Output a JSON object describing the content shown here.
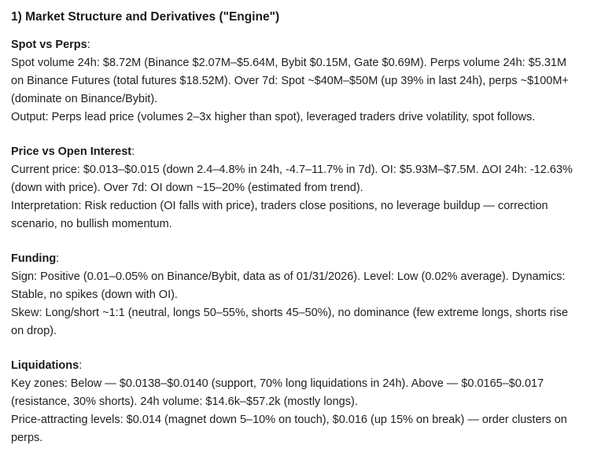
{
  "document": {
    "title": "1) Market Structure and Derivatives (\"Engine\")",
    "label_suffix": ":",
    "sections": [
      {
        "label": "Spot vs Perps",
        "body": "Spot volume 24h: $8.72M (Binance $2.07M–$5.64M, Bybit $0.15M, Gate $0.69M). Perps volume 24h: $5.31M on Binance Futures (total futures $18.52M). Over 7d: Spot ~$40M–$50M (up 39% in last 24h), perps ~$100M+ (dominate on Binance/Bybit).\nOutput: Perps lead price (volumes 2–3x higher than spot), leveraged traders drive volatility, spot follows."
      },
      {
        "label": "Price vs Open Interest",
        "body": "Current price: $0.013–$0.015 (down 2.4–4.8% in 24h, -4.7–11.7% in 7d). OI: $5.93M–$7.5M. ΔOI 24h: -12.63% (down with price). Over 7d: OI down ~15–20% (estimated from trend).\nInterpretation: Risk reduction (OI falls with price), traders close positions, no leverage buildup — correction scenario, no bullish momentum."
      },
      {
        "label": "Funding",
        "body": "Sign: Positive (0.01–0.05% on Binance/Bybit, data as of 01/31/2026). Level: Low (0.02% average). Dynamics: Stable, no spikes (down with OI).\nSkew: Long/short ~1:1 (neutral, longs 50–55%, shorts 45–50%), no dominance (few extreme longs, shorts rise on drop)."
      },
      {
        "label": "Liquidations",
        "body": "Key zones: Below — $0.0138–$0.0140 (support, 70% long liquidations in 24h). Above — $0.0165–$0.017 (resistance, 30% shorts). 24h volume: $14.6k–$57.2k (mostly longs).\nPrice-attracting levels: $0.014 (magnet down 5–10% on touch), $0.016 (up 15% on break) — order clusters on perps."
      }
    ]
  }
}
